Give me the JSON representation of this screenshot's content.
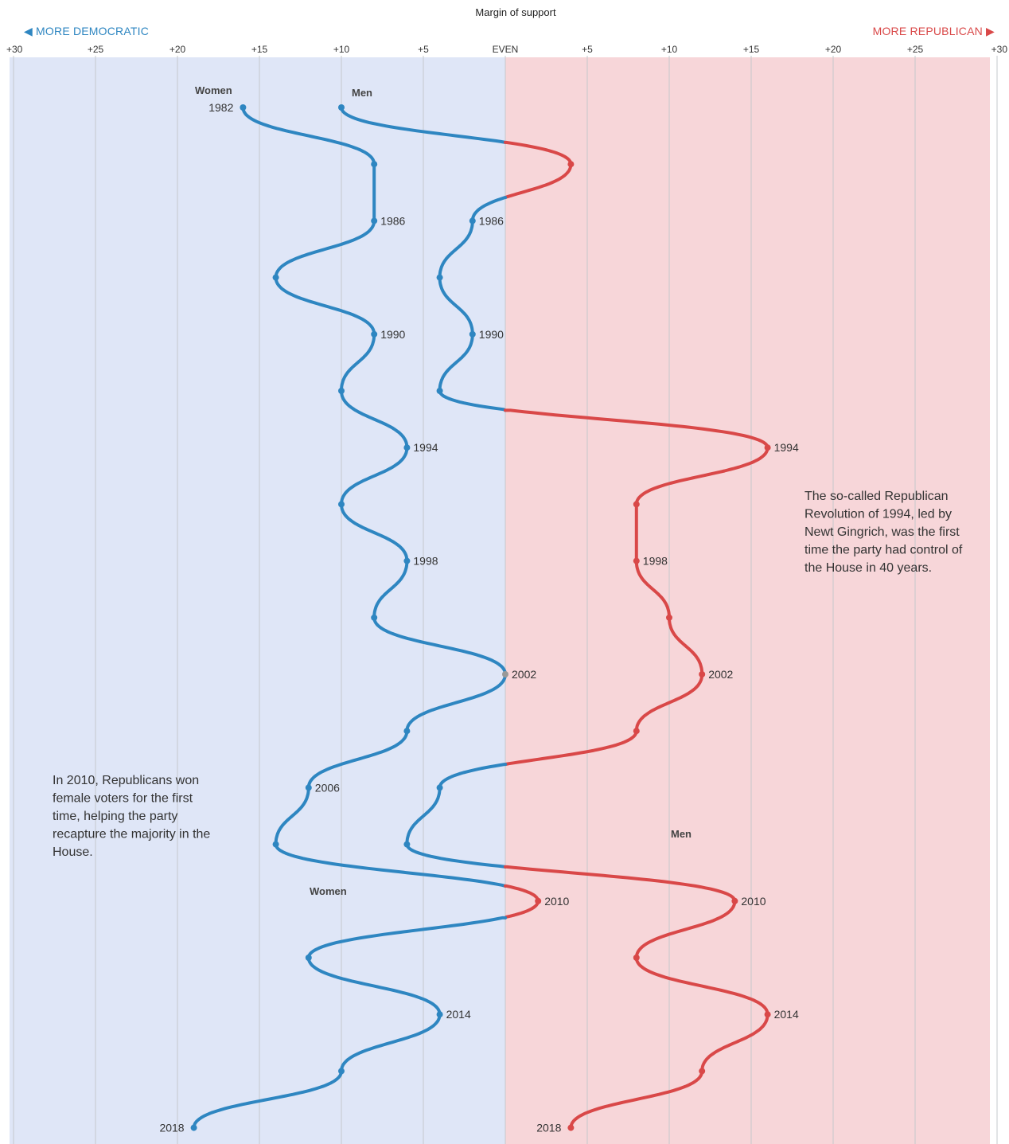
{
  "chart_data": {
    "type": "line",
    "title": "Margin of support",
    "direction_labels": {
      "left": "◀ MORE DEMOCRATIC",
      "right": "MORE REPUBLICAN ▶"
    },
    "x_axis": {
      "range": [
        -30,
        30
      ],
      "tick_values": [
        -30,
        -25,
        -20,
        -15,
        -10,
        -5,
        0,
        5,
        10,
        15,
        20,
        25,
        30
      ],
      "tick_labels": [
        "+30",
        "+25",
        "+20",
        "+15",
        "+10",
        "+5",
        "EVEN",
        "+5",
        "+10",
        "+15",
        "+20",
        "+25",
        "+30"
      ]
    },
    "y_axis": {
      "range": [
        1982,
        2018
      ],
      "direction": "down"
    },
    "colors": {
      "democratic": "#2e86c1",
      "republican": "#d94848",
      "even": "#999999",
      "dem_bg": "#dfe6f7",
      "rep_bg": "#f7d6d9"
    },
    "series": [
      {
        "name": "Women",
        "points": [
          {
            "year": 1982,
            "value": -16,
            "label": "1982"
          },
          {
            "year": 1984,
            "value": -8
          },
          {
            "year": 1986,
            "value": -8,
            "label": "1986"
          },
          {
            "year": 1988,
            "value": -14
          },
          {
            "year": 1990,
            "value": -8,
            "label": "1990"
          },
          {
            "year": 1992,
            "value": -10
          },
          {
            "year": 1994,
            "value": -6,
            "label": "1994"
          },
          {
            "year": 1996,
            "value": -10
          },
          {
            "year": 1998,
            "value": -6,
            "label": "1998"
          },
          {
            "year": 2000,
            "value": -8
          },
          {
            "year": 2002,
            "value": 0,
            "label": "2002"
          },
          {
            "year": 2004,
            "value": -6
          },
          {
            "year": 2006,
            "value": -12,
            "label": "2006"
          },
          {
            "year": 2008,
            "value": -14
          },
          {
            "year": 2010,
            "value": 2,
            "label": "2010"
          },
          {
            "year": 2012,
            "value": -12
          },
          {
            "year": 2014,
            "value": -4,
            "label": "2014"
          },
          {
            "year": 2016,
            "value": -10
          },
          {
            "year": 2018,
            "value": -19,
            "label": "2018"
          }
        ]
      },
      {
        "name": "Men",
        "points": [
          {
            "year": 1982,
            "value": -10
          },
          {
            "year": 1984,
            "value": 4
          },
          {
            "year": 1986,
            "value": -2,
            "label": "1986"
          },
          {
            "year": 1988,
            "value": -4
          },
          {
            "year": 1990,
            "value": -2,
            "label": "1990"
          },
          {
            "year": 1992,
            "value": -4
          },
          {
            "year": 1994,
            "value": 16,
            "label": "1994"
          },
          {
            "year": 1996,
            "value": 8
          },
          {
            "year": 1998,
            "value": 8,
            "label": "1998"
          },
          {
            "year": 2000,
            "value": 10
          },
          {
            "year": 2002,
            "value": 12,
            "label": "2002"
          },
          {
            "year": 2004,
            "value": 8
          },
          {
            "year": 2006,
            "value": -4
          },
          {
            "year": 2008,
            "value": -6
          },
          {
            "year": 2010,
            "value": 14,
            "label": "2010"
          },
          {
            "year": 2012,
            "value": 8
          },
          {
            "year": 2014,
            "value": 16,
            "label": "2014"
          },
          {
            "year": 2016,
            "value": 12
          },
          {
            "year": 2018,
            "value": 4,
            "label": "2018"
          }
        ]
      }
    ],
    "series_labels": [
      {
        "text": "Women",
        "series": "Women",
        "near_year": 1982
      },
      {
        "text": "Men",
        "series": "Men",
        "near_year": 1982
      },
      {
        "text": "Men",
        "series": "Men",
        "near_year": 2009
      },
      {
        "text": "Women",
        "series": "Women",
        "near_year": 2010.5
      }
    ],
    "annotations": [
      {
        "lines": [
          "The so-called Republican",
          "Revolution of 1994, led by",
          "Newt Gingrich, was the first",
          "time the party had control of",
          "the House in 40 years."
        ],
        "near_year": 1997,
        "side": "right"
      },
      {
        "lines": [
          "In 2010, Republicans won",
          "female voters for the first",
          "time, helping the party",
          "recapture the majority in the",
          "House."
        ],
        "near_year": 2008,
        "side": "left"
      }
    ]
  }
}
